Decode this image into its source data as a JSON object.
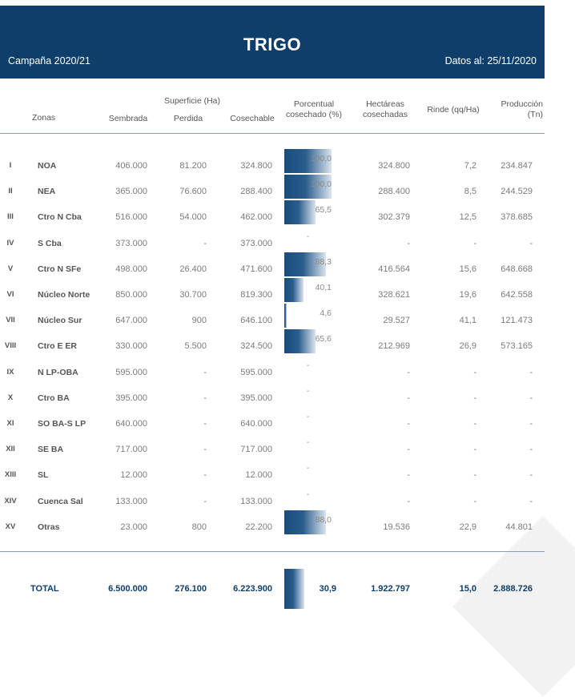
{
  "title": "TRIGO",
  "campaign": "Campaña 2020/21",
  "date_label": "Datos al: 25/11/2020",
  "headers": {
    "zonas": "Zonas",
    "sembrada": "Sembrada",
    "superficie_group": "Superficie (Ha)",
    "perdida": "Perdida",
    "cosechable": "Cosechable",
    "porcentual_1": "Porcentual",
    "porcentual_2": "cosechado (%)",
    "hectareas_1": "Hectáreas",
    "hectareas_2": "cosechadas",
    "rinde": "Rinde (qq/Ha)",
    "produccion_1": "Producción",
    "produccion_2": "(Tn)"
  },
  "colors": {
    "banner": "#0e3e6a",
    "bar_dark": "#174c7c",
    "bar_light": "#dbe4ee"
  },
  "rows": [
    {
      "roman": "I",
      "zona": "NOA",
      "sembrada": "406.000",
      "perdida": "81.200",
      "cosechable": "324.800",
      "pct": 100.0,
      "pct_label": "100,0",
      "hectareas": "324.800",
      "rinde": "7,2",
      "produccion": "234.847"
    },
    {
      "roman": "II",
      "zona": "NEA",
      "sembrada": "365.000",
      "perdida": "76.600",
      "cosechable": "288.400",
      "pct": 100.0,
      "pct_label": "100,0",
      "hectareas": "288.400",
      "rinde": "8,5",
      "produccion": "244.529"
    },
    {
      "roman": "III",
      "zona": "Ctro N Cba",
      "sembrada": "516.000",
      "perdida": "54.000",
      "cosechable": "462.000",
      "pct": 65.5,
      "pct_label": "65,5",
      "hectareas": "302.379",
      "rinde": "12,5",
      "produccion": "378.685"
    },
    {
      "roman": "IV",
      "zona": "S Cba",
      "sembrada": "373.000",
      "perdida": "-",
      "cosechable": "373.000",
      "pct": null,
      "pct_label": "-",
      "hectareas": "-",
      "rinde": "-",
      "produccion": "-"
    },
    {
      "roman": "V",
      "zona": "Ctro N SFe",
      "sembrada": "498.000",
      "perdida": "26.400",
      "cosechable": "471.600",
      "pct": 88.3,
      "pct_label": "88,3",
      "hectareas": "416.564",
      "rinde": "15,6",
      "produccion": "648.668"
    },
    {
      "roman": "VI",
      "zona": "Núcleo Norte",
      "sembrada": "850.000",
      "perdida": "30.700",
      "cosechable": "819.300",
      "pct": 40.1,
      "pct_label": "40,1",
      "hectareas": "328.621",
      "rinde": "19,6",
      "produccion": "642.558"
    },
    {
      "roman": "VII",
      "zona": "Núcleo Sur",
      "sembrada": "647.000",
      "perdida": "900",
      "cosechable": "646.100",
      "pct": 4.6,
      "pct_label": "4,6",
      "hectareas": "29.527",
      "rinde": "41,1",
      "produccion": "121.473"
    },
    {
      "roman": "VIII",
      "zona": "Ctro E ER",
      "sembrada": "330.000",
      "perdida": "5.500",
      "cosechable": "324.500",
      "pct": 65.6,
      "pct_label": "65,6",
      "hectareas": "212.969",
      "rinde": "26,9",
      "produccion": "573.165"
    },
    {
      "roman": "IX",
      "zona": "N LP-OBA",
      "sembrada": "595.000",
      "perdida": "-",
      "cosechable": "595.000",
      "pct": null,
      "pct_label": "-",
      "hectareas": "-",
      "rinde": "-",
      "produccion": "-"
    },
    {
      "roman": "X",
      "zona": "Ctro BA",
      "sembrada": "395.000",
      "perdida": "-",
      "cosechable": "395.000",
      "pct": null,
      "pct_label": "-",
      "hectareas": "-",
      "rinde": "-",
      "produccion": "-"
    },
    {
      "roman": "XI",
      "zona": "SO BA-S LP",
      "sembrada": "640.000",
      "perdida": "-",
      "cosechable": "640.000",
      "pct": null,
      "pct_label": "-",
      "hectareas": "-",
      "rinde": "-",
      "produccion": "-"
    },
    {
      "roman": "XII",
      "zona": "SE BA",
      "sembrada": "717.000",
      "perdida": "-",
      "cosechable": "717.000",
      "pct": null,
      "pct_label": "-",
      "hectareas": "-",
      "rinde": "-",
      "produccion": "-"
    },
    {
      "roman": "XIII",
      "zona": "SL",
      "sembrada": "12.000",
      "perdida": "-",
      "cosechable": "12.000",
      "pct": null,
      "pct_label": "-",
      "hectareas": "-",
      "rinde": "-",
      "produccion": "-"
    },
    {
      "roman": "XIV",
      "zona": "Cuenca Sal",
      "sembrada": "133.000",
      "perdida": "-",
      "cosechable": "133.000",
      "pct": null,
      "pct_label": "-",
      "hectareas": "-",
      "rinde": "-",
      "produccion": "-"
    },
    {
      "roman": "XV",
      "zona": "Otras",
      "sembrada": "23.000",
      "perdida": "800",
      "cosechable": "22.200",
      "pct": 88.0,
      "pct_label": "88,0",
      "hectareas": "19.536",
      "rinde": "22,9",
      "produccion": "44.801"
    }
  ],
  "total": {
    "label": "TOTAL",
    "sembrada": "6.500.000",
    "perdida": "276.100",
    "cosechable": "6.223.900",
    "pct": 30.9,
    "pct_label": "30,9",
    "hectareas": "1.922.797",
    "rinde": "15,0",
    "produccion": "2.888.726"
  }
}
